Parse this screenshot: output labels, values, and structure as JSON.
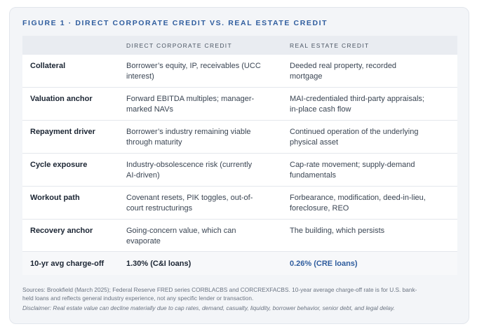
{
  "figure_title": "FIGURE 1 · DIRECT CORPORATE CREDIT VS. REAL ESTATE CREDIT",
  "table": {
    "headers": [
      "",
      "DIRECT CORPORATE CREDIT",
      "REAL ESTATE CREDIT"
    ],
    "rows": [
      {
        "label": "Collateral",
        "corporate": [
          "Borrower’s equity, IP, receivables (UCC",
          "interest)"
        ],
        "real_estate": [
          "Deeded real property, recorded",
          "mortgage"
        ]
      },
      {
        "label": "Valuation anchor",
        "corporate": [
          "Forward EBITDA multiples; manager-",
          "marked NAVs"
        ],
        "real_estate": [
          "MAI-credentialed third-party appraisals;",
          "in-place cash flow"
        ]
      },
      {
        "label": "Repayment driver",
        "corporate": [
          "Borrower’s industry remaining viable",
          "through maturity"
        ],
        "real_estate": [
          "Continued operation of the underlying",
          "physical asset"
        ]
      },
      {
        "label": "Cycle exposure",
        "corporate": [
          "Industry-obsolescence risk (currently",
          "AI-driven)"
        ],
        "real_estate": [
          "Cap-rate movement; supply-demand",
          "fundamentals"
        ]
      },
      {
        "label": "Workout path",
        "corporate": [
          "Covenant resets, PIK toggles, out-of-",
          "court restructurings"
        ],
        "real_estate": [
          "Forbearance, modification, deed-in-lieu,",
          "foreclosure, REO"
        ]
      },
      {
        "label": "Recovery anchor",
        "corporate": [
          "Going-concern value, which can",
          "evaporate"
        ],
        "real_estate": [
          "The building, which persists",
          ""
        ]
      }
    ],
    "summary_row": {
      "label": "10-yr avg charge-off",
      "corporate": "1.30% (C&I loans)",
      "real_estate": "0.26% (CRE loans)"
    }
  },
  "footer": {
    "sources_line1": "Sources: Brookfield (March 2025); Federal Reserve FRED series CORBLACBS and CORCREXFACBS. 10-year average charge-off rate is for U.S. bank-",
    "sources_line2": "held loans and reflects general industry experience, not any specific lender or transaction.",
    "disclaimer": "Disclaimer: Real estate value can decline materially due to cap rates, demand, casualty, liquidity, borrower behavior, senior debt, and legal delay."
  },
  "colors": {
    "accent_blue": "#2f5d9e",
    "card_bg": "#f3f5f8",
    "header_bg": "#e9ecf1"
  }
}
